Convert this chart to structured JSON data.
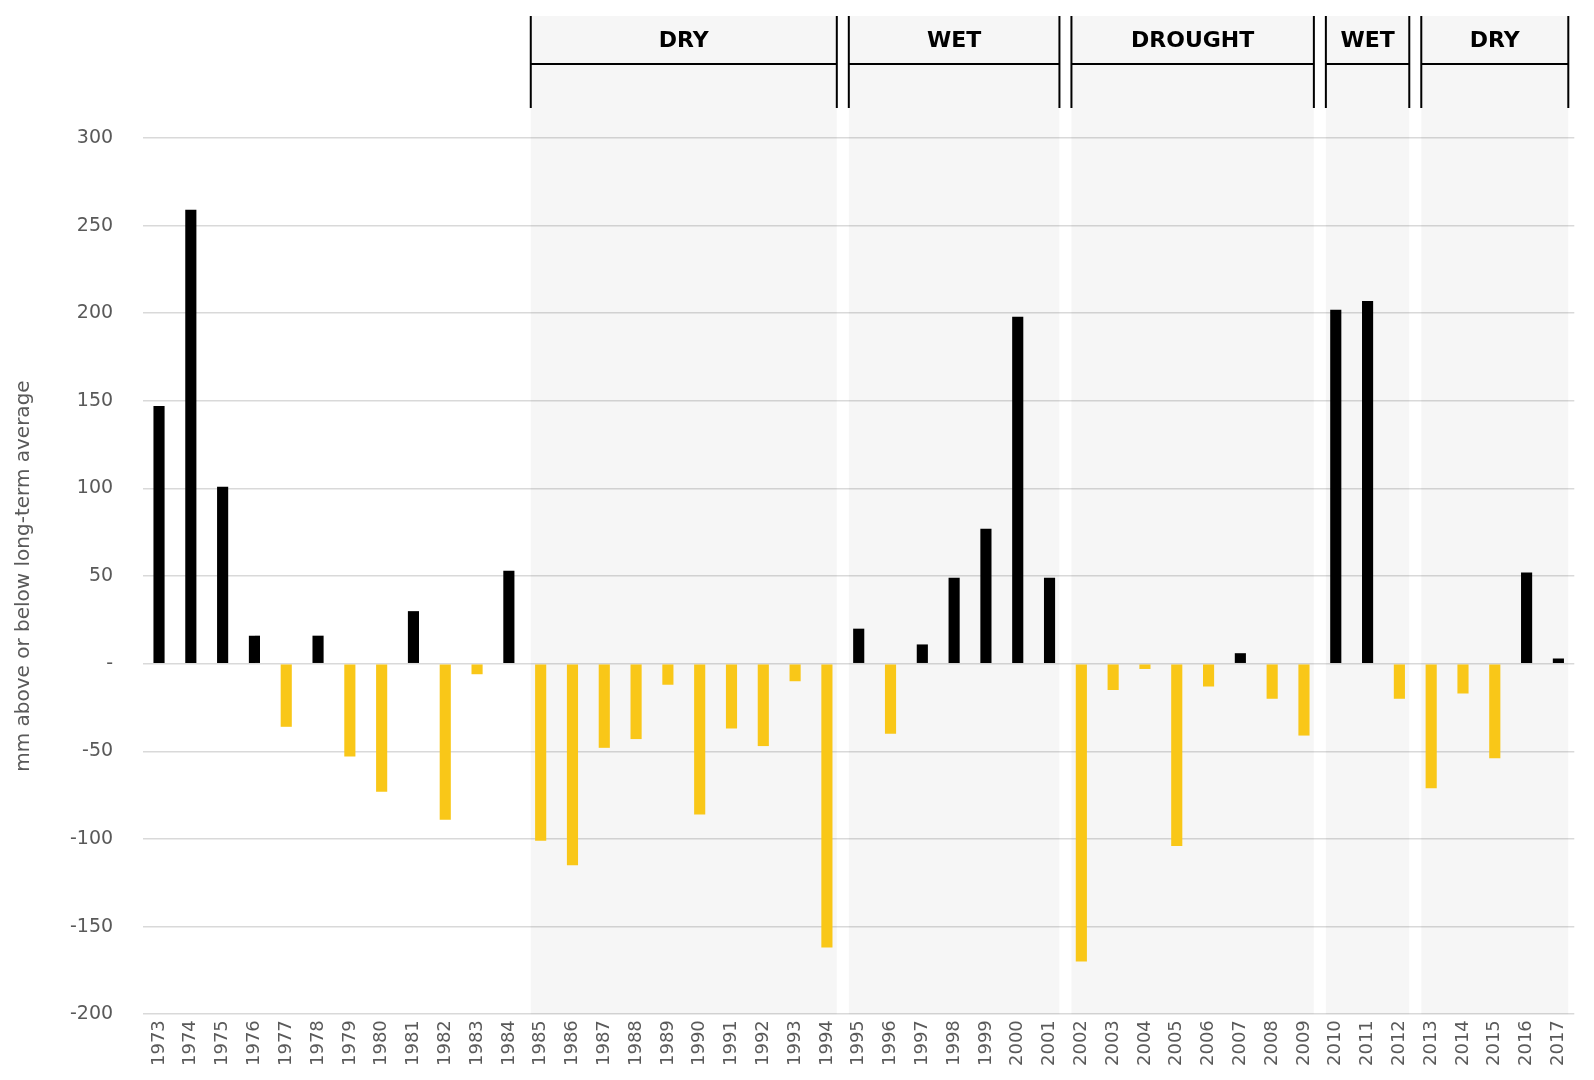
{
  "chart_data": {
    "type": "bar",
    "ylabel": "mm above or below long-term average",
    "categories": [
      "1973",
      "1974",
      "1975",
      "1976",
      "1977",
      "1978",
      "1979",
      "1980",
      "1981",
      "1982",
      "1983",
      "1984",
      "1985",
      "1986",
      "1987",
      "1988",
      "1989",
      "1990",
      "1991",
      "1992",
      "1993",
      "1994",
      "1995",
      "1996",
      "1997",
      "1998",
      "1999",
      "2000",
      "2001",
      "2002",
      "2003",
      "2004",
      "2005",
      "2006",
      "2007",
      "2008",
      "2009",
      "2010",
      "2011",
      "2012",
      "2013",
      "2014",
      "2015",
      "2016",
      "2017"
    ],
    "values": [
      147,
      259,
      101,
      16,
      -36,
      16,
      -53,
      -73,
      30,
      -89,
      -6,
      53,
      -101,
      -115,
      -48,
      -43,
      -12,
      -86,
      -37,
      -47,
      -10,
      -162,
      20,
      -40,
      11,
      49,
      77,
      198,
      49,
      -170,
      -15,
      -3,
      -104,
      -13,
      6,
      -20,
      -41,
      202,
      207,
      -20,
      -71,
      -17,
      -54,
      52,
      3
    ],
    "colors": [
      "#000000",
      "#000000",
      "#000000",
      "#000000",
      "#f9c718",
      "#000000",
      "#f9c718",
      "#f9c718",
      "#000000",
      "#f9c718",
      "#f9c718",
      "#000000",
      "#f9c718",
      "#f9c718",
      "#f9c718",
      "#f9c718",
      "#f9c718",
      "#f9c718",
      "#f9c718",
      "#f9c718",
      "#f9c718",
      "#f9c718",
      "#000000",
      "#f9c718",
      "#000000",
      "#000000",
      "#000000",
      "#000000",
      "#000000",
      "#f9c718",
      "#f9c718",
      "#f9c718",
      "#f9c718",
      "#f9c718",
      "#000000",
      "#f9c718",
      "#f9c718",
      "#000000",
      "#000000",
      "#f9c718",
      "#f9c718",
      "#f9c718",
      "#f9c718",
      "#000000",
      "#000000"
    ],
    "ylim": [
      -200,
      300
    ],
    "yticks": [
      -200,
      -150,
      -100,
      -50,
      {
        "value": 0,
        "label": "-"
      },
      50,
      100,
      150,
      200,
      250,
      300
    ],
    "grid": "y",
    "legend": false,
    "bands": [
      {
        "axis": "x",
        "from": "1985",
        "to": "1994",
        "label": "DRY"
      },
      {
        "axis": "x",
        "from": "1995",
        "to": "2001",
        "label": "WET"
      },
      {
        "axis": "x",
        "from": "2002",
        "to": "2009",
        "label": "DROUGHT"
      },
      {
        "axis": "x",
        "from": "2010",
        "to": "2012",
        "label": "WET"
      },
      {
        "axis": "x",
        "from": "2013",
        "to": "2017",
        "label": "DRY"
      }
    ]
  }
}
